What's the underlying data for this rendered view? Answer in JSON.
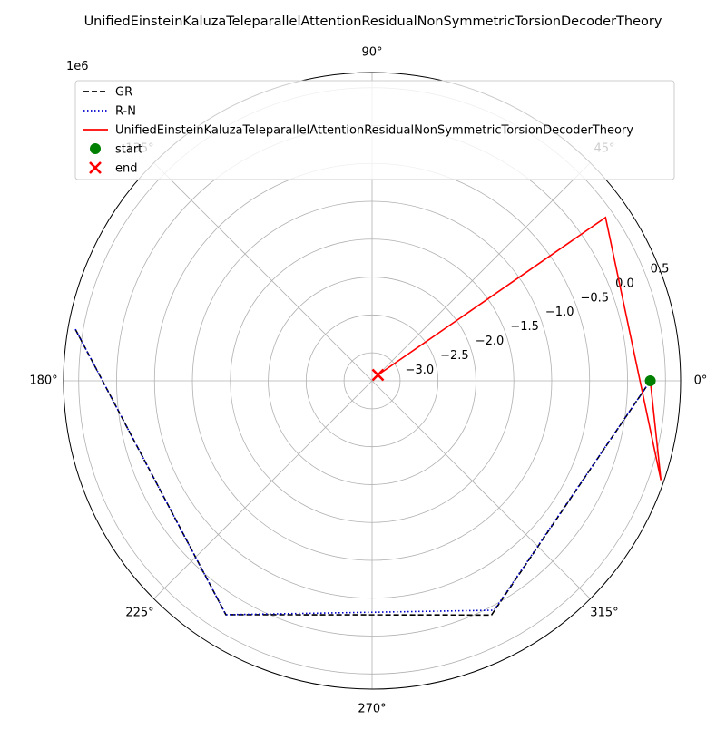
{
  "chart_data": {
    "type": "polar-line",
    "title": "UnifiedEinsteinKaluzaTeleparallelAttentionResidualNonSymmetricTorsionDecoderTheory",
    "radial_scale_label": "1e6",
    "radial_ticks": [
      "−3.0",
      "−2.5",
      "−2.0",
      "−1.5",
      "−1.0",
      "−0.5",
      "0.0",
      "0.5"
    ],
    "radial_tick_values": [
      -3.0,
      -2.5,
      -2.0,
      -1.5,
      -1.0,
      -0.5,
      0.0,
      0.5
    ],
    "rlim": [
      -3.37,
      0.7
    ],
    "theta_tick_labels": [
      "0°",
      "45°",
      "90°",
      "135°",
      "180°",
      "225°",
      "270°",
      "315°"
    ],
    "theta_tick_values_deg": [
      0,
      45,
      90,
      135,
      180,
      225,
      270,
      315
    ],
    "grid": true,
    "legend_position": "top-left",
    "colors": {
      "GR": "#000000",
      "R-N": "#0000cd",
      "UnifiedEinsteinKaluzaTeleparallelAttentionResidualNonSymmetricTorsionDecoderTheory": "#ff0000",
      "start": "#008000",
      "end": "#ff0000"
    },
    "series": [
      {
        "name": "GR",
        "style": "dashed",
        "points": [
          {
            "theta_deg": 0,
            "r": 0.3
          },
          {
            "theta_deg": 297,
            "r": 0.1
          },
          {
            "theta_deg": 238,
            "r": 0.27
          },
          {
            "theta_deg": 170,
            "r": 0.61
          }
        ]
      },
      {
        "name": "R-N",
        "style": "dotted",
        "points": [
          {
            "theta_deg": 0,
            "r": 0.3
          },
          {
            "theta_deg": 298,
            "r": 0.06
          },
          {
            "theta_deg": 238,
            "r": 0.27
          },
          {
            "theta_deg": 170,
            "r": 0.61
          }
        ]
      },
      {
        "name": "UnifiedEinsteinKaluzaTeleparallelAttentionResidualNonSymmetricTorsionDecoderTheory",
        "style": "solid",
        "points": [
          {
            "theta_deg": 0,
            "r": 0.3
          },
          {
            "theta_deg": 341,
            "r": 0.66
          },
          {
            "theta_deg": 35,
            "r": 0.39
          },
          {
            "theta_deg": 45,
            "r": -3.26
          }
        ]
      }
    ],
    "markers": [
      {
        "name": "start",
        "shape": "circle",
        "theta_deg": 0,
        "r": 0.3
      },
      {
        "name": "end",
        "shape": "x",
        "theta_deg": 45,
        "r": -3.26
      }
    ]
  }
}
